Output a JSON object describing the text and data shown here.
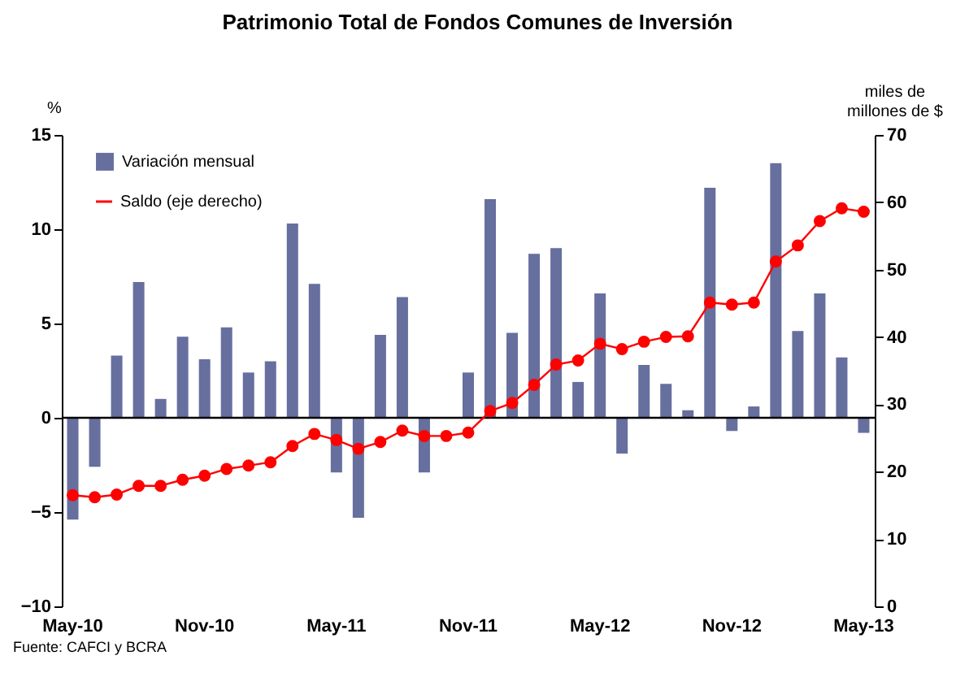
{
  "chart_data": {
    "type": "bar",
    "title": "Patrimonio Total de Fondos Comunes de Inversión",
    "categories": [
      "May-10",
      null,
      null,
      null,
      null,
      null,
      "Nov-10",
      null,
      null,
      null,
      null,
      null,
      "May-11",
      null,
      null,
      null,
      null,
      null,
      "Nov-11",
      null,
      null,
      null,
      null,
      null,
      "May-12",
      null,
      null,
      null,
      null,
      null,
      "Nov-12",
      null,
      null,
      null,
      null,
      null,
      "May-13"
    ],
    "ylabel": "%",
    "y2label": "miles de millones de $",
    "ylim": [
      -10,
      15
    ],
    "yticks": [
      -10,
      -5,
      0,
      5,
      10,
      15
    ],
    "y2lim": [
      0,
      70
    ],
    "y2ticks": [
      0,
      10,
      20,
      30,
      40,
      50,
      60,
      70
    ],
    "series": [
      {
        "name": "Variación mensual",
        "color": "#666f9e",
        "values": [
          -5.4,
          -2.6,
          3.3,
          7.2,
          1.0,
          4.3,
          3.1,
          4.8,
          2.4,
          3.0,
          10.3,
          7.1,
          -2.9,
          -5.3,
          4.4,
          6.4,
          -2.9,
          null,
          2.4,
          11.6,
          4.5,
          8.7,
          9.0,
          1.9,
          6.6,
          -1.9,
          2.8,
          1.8,
          0.4,
          12.2,
          -0.7,
          0.6,
          13.5,
          4.6,
          6.6,
          3.2,
          -0.8
        ]
      },
      {
        "name": "Saldo (eje derecho)",
        "type": "line",
        "axis": "y2",
        "color": "#ff0000",
        "marker": "circle",
        "values": [
          16.5,
          16.2,
          16.6,
          17.9,
          17.9,
          18.8,
          19.4,
          20.4,
          20.9,
          21.4,
          23.8,
          25.6,
          24.7,
          23.4,
          24.4,
          26.1,
          25.3,
          25.3,
          25.8,
          29.0,
          30.2,
          32.9,
          35.9,
          36.5,
          39.0,
          38.2,
          39.3,
          40.0,
          40.1,
          45.1,
          44.8,
          45.1,
          51.2,
          53.6,
          57.2,
          59.1,
          58.6
        ]
      }
    ],
    "ref_lines": [
      {
        "axis": "y",
        "value": 0
      }
    ],
    "legend": "top left",
    "grid": false,
    "annotations": [
      "Fuente: CAFCI y BCRA"
    ]
  }
}
